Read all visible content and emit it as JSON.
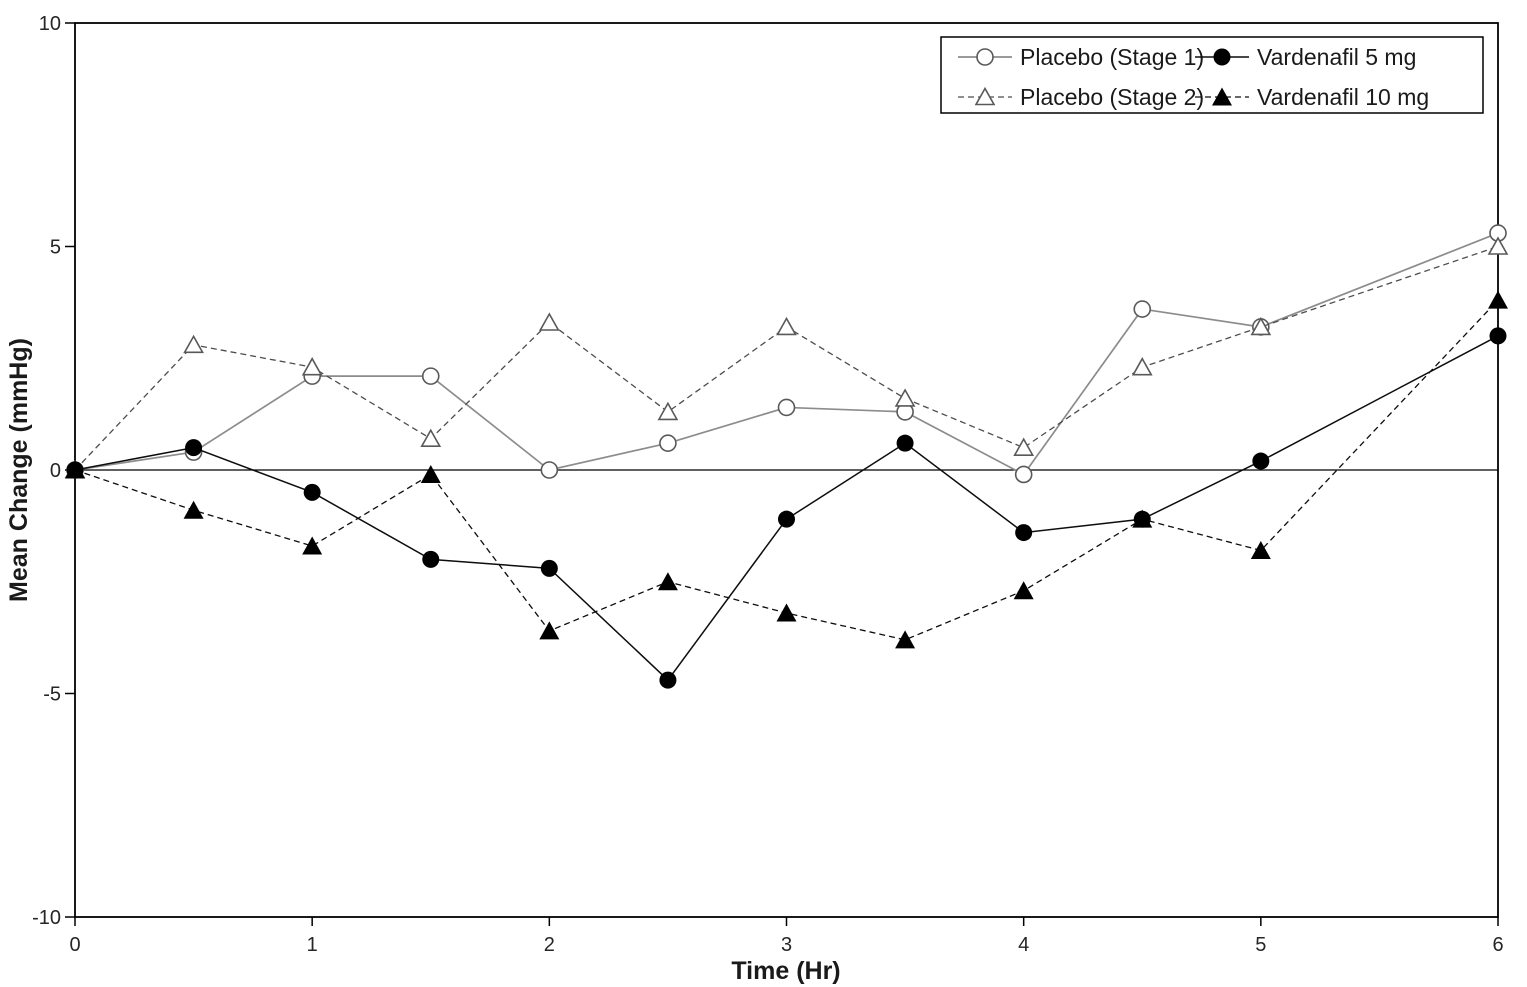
{
  "chart_data": {
    "type": "line",
    "title": "",
    "xlabel": "Time (Hr)",
    "ylabel": "Mean Change (mmHg)",
    "xlim": [
      0,
      6
    ],
    "ylim": [
      -10,
      10
    ],
    "x_ticks": [
      0,
      1,
      2,
      3,
      4,
      5,
      6
    ],
    "y_ticks": [
      10,
      5,
      0,
      -5,
      -10
    ],
    "grid": false,
    "zero_line": true,
    "x": [
      0,
      0.5,
      1,
      1.5,
      2,
      2.5,
      3,
      3.5,
      4,
      4.5,
      5,
      6
    ],
    "series": [
      {
        "name": "Placebo (Stage 1)",
        "marker": "circle-open",
        "line": "solid",
        "line_color": "#8c8c8c",
        "marker_color": "#595959",
        "line_width": 1.7,
        "values": [
          0,
          0.4,
          2.1,
          2.1,
          0.0,
          0.6,
          1.4,
          1.3,
          -0.1,
          3.6,
          3.2,
          5.3
        ]
      },
      {
        "name": "Placebo (Stage 2)",
        "marker": "triangle-open",
        "line": "dashed",
        "line_color": "#4d4d4d",
        "marker_color": "#595959",
        "line_width": 1.3,
        "values": [
          0,
          2.8,
          2.3,
          0.7,
          3.3,
          1.3,
          3.2,
          1.6,
          0.5,
          2.3,
          3.2,
          5.0
        ]
      },
      {
        "name": "Vardenafil 10 mg",
        "marker": "triangle-filled",
        "line": "dashed",
        "line_color": "#0d0d0d",
        "marker_color": "#000000",
        "line_width": 1.3,
        "values": [
          0,
          -0.9,
          -1.7,
          -0.1,
          -3.6,
          -2.5,
          -3.2,
          -3.8,
          -2.7,
          -1.1,
          -1.8,
          3.8
        ]
      },
      {
        "name": "Vardenafil 5 mg",
        "marker": "circle-filled",
        "line": "solid",
        "line_color": "#0d0d0d",
        "marker_color": "#000000",
        "line_width": 1.5,
        "values": [
          0,
          0.5,
          -0.5,
          -2.0,
          -2.2,
          -4.7,
          -1.1,
          0.6,
          -1.4,
          -1.1,
          0.2,
          3.0
        ]
      }
    ],
    "legend": {
      "position": "top-right",
      "columns": [
        [
          "Placebo (Stage 1)",
          "Placebo (Stage 2)"
        ],
        [
          "Vardenafil 5 mg",
          "Vardenafil 10 mg"
        ]
      ]
    },
    "frame_color": "#000000",
    "background_color": "#ffffff"
  }
}
